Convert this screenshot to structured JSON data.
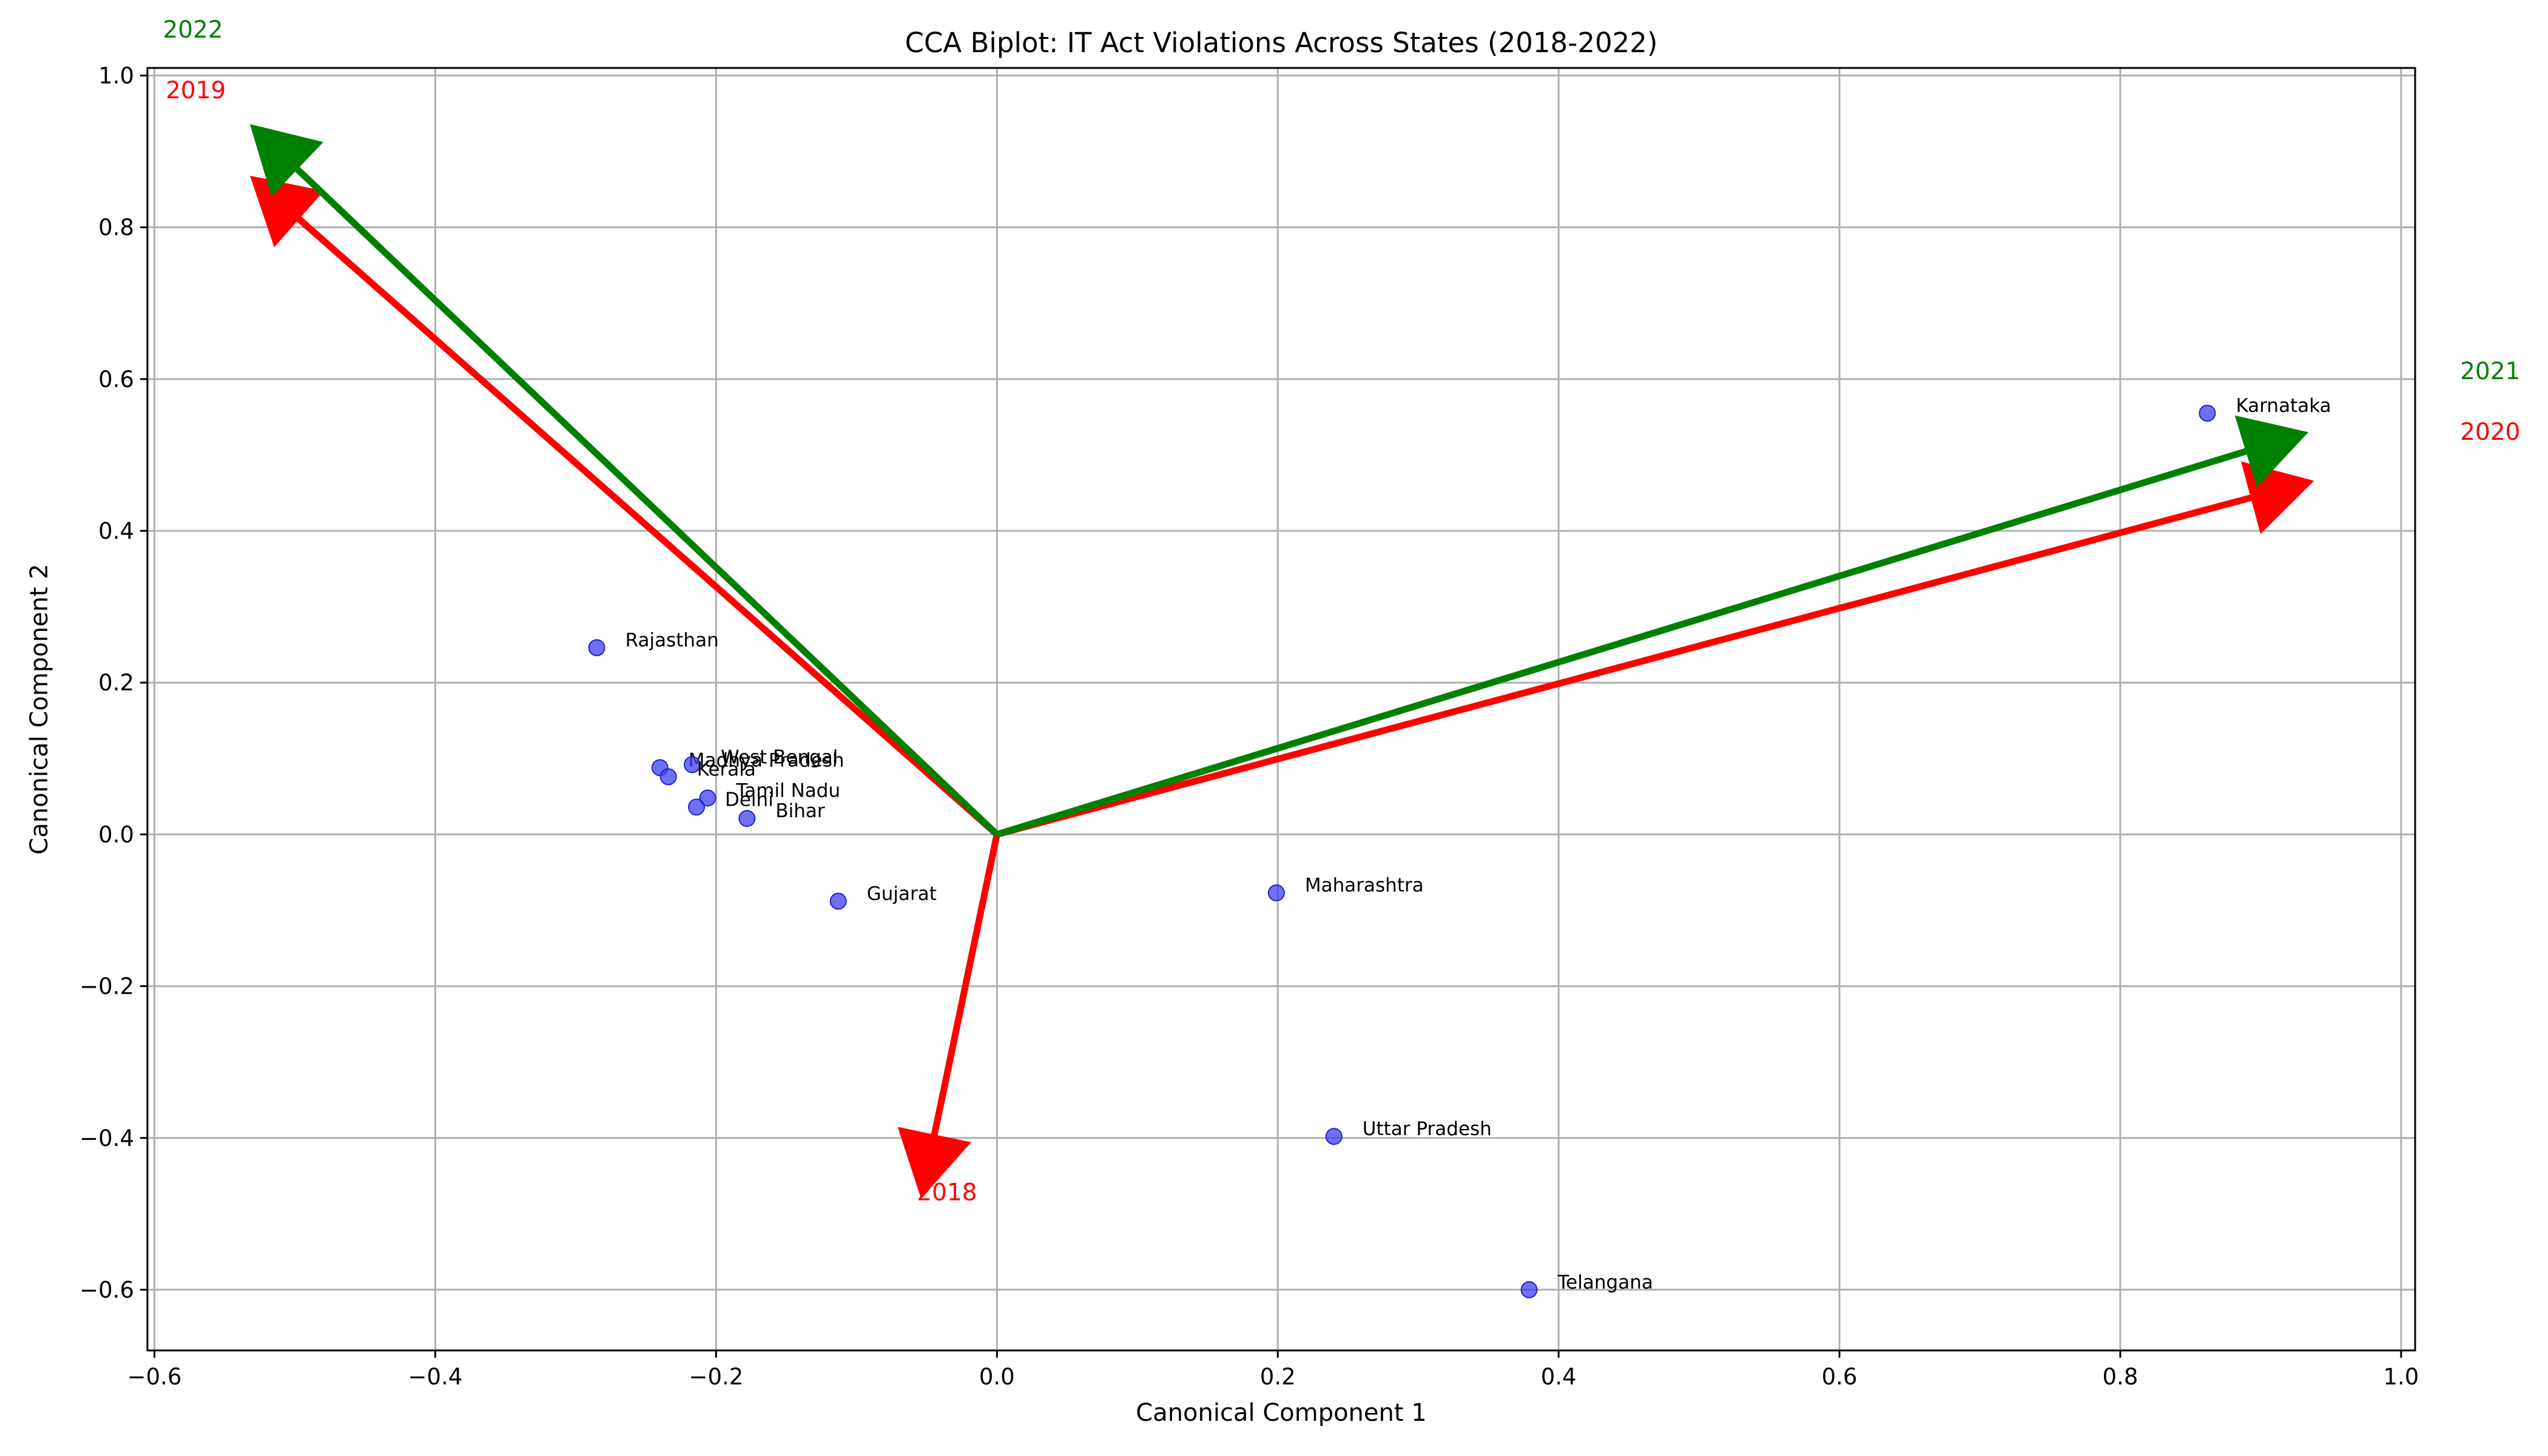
{
  "chart_data": {
    "type": "scatter",
    "title": "CCA Biplot: IT Act Violations Across States (2018-2022)",
    "xlabel": "Canonical Component 1",
    "ylabel": "Canonical Component 2",
    "xlim": [
      -0.605,
      1.01
    ],
    "ylim": [
      -0.68,
      1.01
    ],
    "xticks": [
      -0.6,
      -0.4,
      -0.2,
      0.0,
      0.2,
      0.4,
      0.6,
      0.8,
      1.0
    ],
    "xtick_labels": [
      "−0.6",
      "−0.4",
      "−0.2",
      "0.0",
      "0.2",
      "0.4",
      "0.6",
      "0.8",
      "1.0"
    ],
    "yticks": [
      -0.6,
      -0.4,
      -0.2,
      0.0,
      0.2,
      0.4,
      0.6,
      0.8,
      1.0
    ],
    "ytick_labels": [
      "−0.6",
      "−0.4",
      "−0.2",
      "0.0",
      "0.2",
      "0.4",
      "0.6",
      "0.8",
      "1.0"
    ],
    "grid": true,
    "point_color": "#4040f0",
    "points": [
      {
        "label": "Karnataka",
        "x": 0.862,
        "y": 0.555
      },
      {
        "label": "Rajasthan",
        "x": -0.285,
        "y": 0.246
      },
      {
        "label": "Madhya Pradesh",
        "x": -0.24,
        "y": 0.088
      },
      {
        "label": "West Bengal",
        "x": -0.217,
        "y": 0.092
      },
      {
        "label": "Kerala",
        "x": -0.234,
        "y": 0.076
      },
      {
        "label": "Tamil Nadu",
        "x": -0.206,
        "y": 0.048
      },
      {
        "label": "Delhi",
        "x": -0.214,
        "y": 0.036
      },
      {
        "label": "Bihar",
        "x": -0.178,
        "y": 0.021
      },
      {
        "label": "Gujarat",
        "x": -0.113,
        "y": -0.088
      },
      {
        "label": "Maharashtra",
        "x": 0.199,
        "y": -0.077
      },
      {
        "label": "Uttar Pradesh",
        "x": 0.24,
        "y": -0.398
      },
      {
        "label": "Telangana",
        "x": 0.379,
        "y": -0.6
      }
    ],
    "vectors": [
      {
        "label": "2018",
        "x": -0.054,
        "y": -0.48,
        "color": "#ff0000"
      },
      {
        "label": "2019",
        "x": -0.532,
        "y": 0.868,
        "color": "#ff0000"
      },
      {
        "label": "2020",
        "x": 0.938,
        "y": 0.466,
        "color": "#ff0000"
      },
      {
        "label": "2021",
        "x": 0.934,
        "y": 0.53,
        "color": "#008000"
      },
      {
        "label": "2022",
        "x": -0.532,
        "y": 0.936,
        "color": "#008000"
      }
    ],
    "vector_labels": [
      {
        "label": "2018",
        "x": -0.057,
        "y": -0.482,
        "color": "#ff0000"
      },
      {
        "label": "2019",
        "x": -0.592,
        "y": 0.97,
        "color": "#ff0000"
      },
      {
        "label": "2020",
        "x": 1.042,
        "y": 0.52,
        "color": "#ff0000"
      },
      {
        "label": "2021",
        "x": 1.042,
        "y": 0.6,
        "color": "#008000"
      },
      {
        "label": "2022",
        "x": -0.594,
        "y": 1.05,
        "color": "#008000"
      }
    ]
  }
}
